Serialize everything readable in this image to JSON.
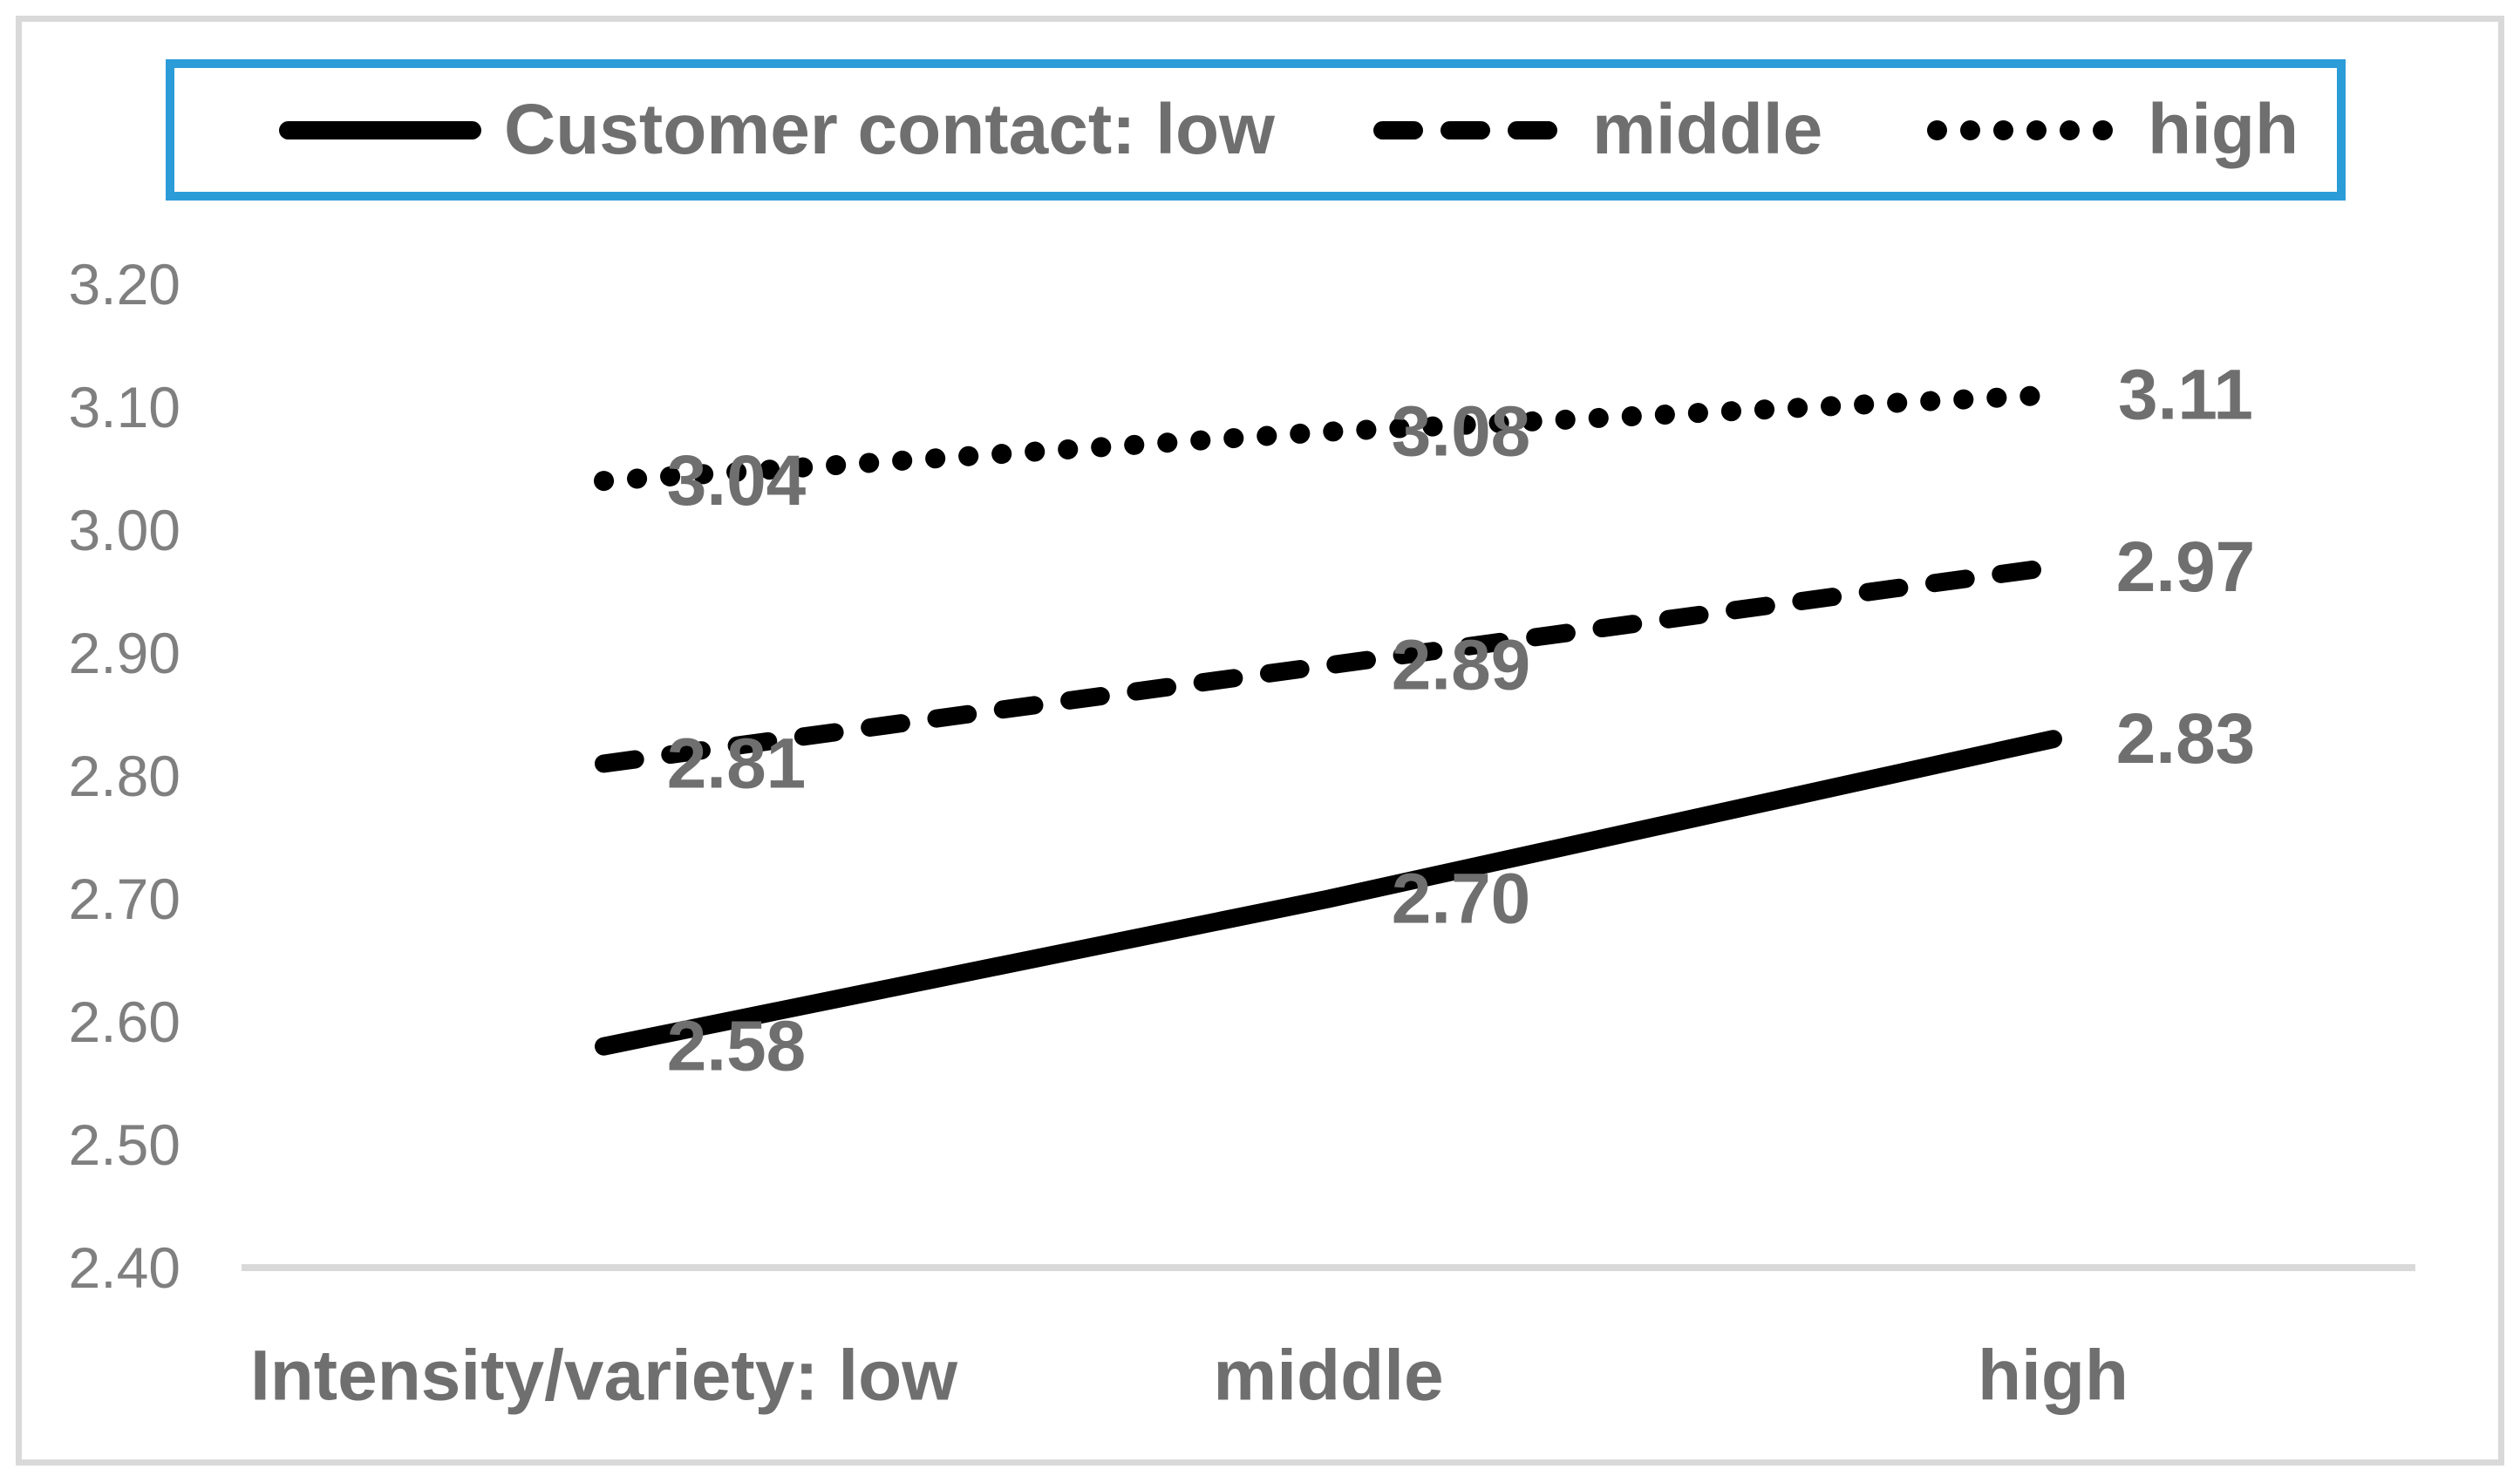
{
  "figure": {
    "type": "interaction-plot",
    "background": "#ffffff",
    "frame_color": "#d9d9d9",
    "legend_border_color": "#2b9cd8",
    "line_color": "#000000",
    "label_color": "#6f6f6f",
    "tick_color": "#7f7f7f",
    "axis_line_color": "#d9d9d9"
  },
  "legend": {
    "position": "top",
    "items": [
      {
        "label": "Customer contact: low",
        "style": "solid"
      },
      {
        "label": "middle",
        "style": "dashed"
      },
      {
        "label": "high",
        "style": "dotted"
      }
    ]
  },
  "chart_data": {
    "type": "line",
    "categories": [
      "low",
      "middle",
      "high"
    ],
    "x_tick_labels": [
      "Intensity/variety: low",
      "middle",
      "high"
    ],
    "series": [
      {
        "name": "Customer contact: low",
        "style": "solid",
        "values": [
          2.58,
          2.7,
          2.83
        ]
      },
      {
        "name": "middle",
        "style": "dashed",
        "values": [
          2.81,
          2.89,
          2.97
        ]
      },
      {
        "name": "high",
        "style": "dotted",
        "values": [
          3.04,
          3.08,
          3.11
        ]
      }
    ],
    "data_labels": [
      [
        "2.58",
        "2.70",
        "2.83"
      ],
      [
        "2.81",
        "2.89",
        "2.97"
      ],
      [
        "3.04",
        "3.08",
        "3.11"
      ]
    ],
    "y_ticks": [
      "3.20",
      "3.10",
      "3.00",
      "2.90",
      "2.80",
      "2.70",
      "2.60",
      "2.50",
      "2.40"
    ],
    "ylim": [
      2.4,
      3.2
    ],
    "xlabel": "",
    "ylabel": "",
    "title": "",
    "grid": false,
    "legend_position": "top"
  }
}
